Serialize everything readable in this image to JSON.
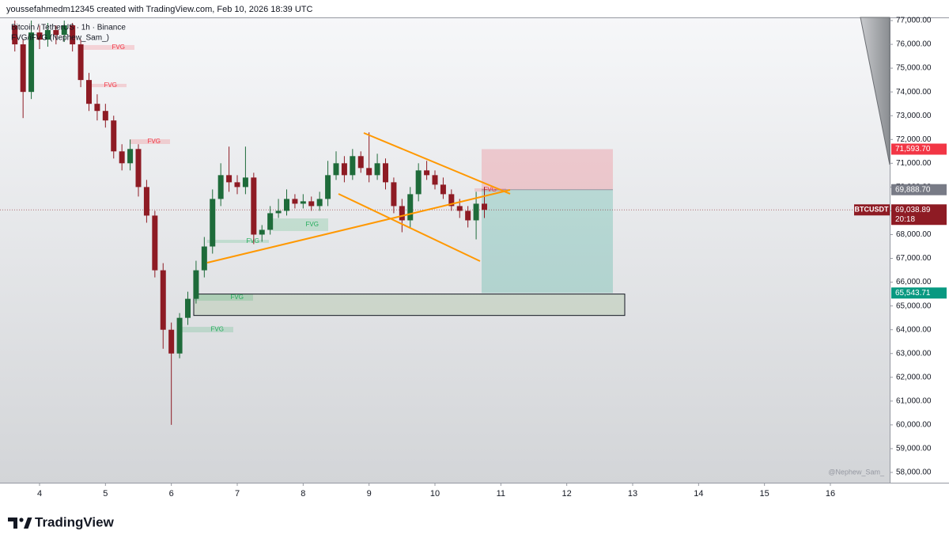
{
  "header": {
    "text": "youssefahmedm12345 created with TradingView.com, Feb 10, 2026 18:39 UTC"
  },
  "chart_data": {
    "type": "candlestick",
    "title": "Bitcoin / TetherUS · 1h · Binance",
    "indicator": "FVG/iFVG (Nephew_Sam_)",
    "watermark": "@Nephew_Sam_",
    "up_color": "#1e6b3a",
    "down_color": "#8e1b24",
    "x": [
      3.625,
      3.75,
      3.875,
      4,
      4.125,
      4.25,
      4.375,
      4.5,
      4.625,
      4.75,
      4.875,
      5,
      5.125,
      5.25,
      5.375,
      5.5,
      5.625,
      5.75,
      5.875,
      6,
      6.125,
      6.25,
      6.375,
      6.5,
      6.625,
      6.75,
      6.875,
      7,
      7.125,
      7.25,
      7.375,
      7.5,
      7.625,
      7.75,
      7.875,
      8,
      8.125,
      8.25,
      8.375,
      8.5,
      8.625,
      8.75,
      8.875,
      9,
      9.125,
      9.25,
      9.375,
      9.5,
      9.625,
      9.75,
      9.875,
      10,
      10.125,
      10.25,
      10.375,
      10.5,
      10.625,
      10.75
    ],
    "open": [
      76800,
      76000,
      74000,
      76500,
      76200,
      76600,
      76400,
      76800,
      76000,
      74500,
      73500,
      73200,
      72800,
      71500,
      71000,
      71600,
      70000,
      68800,
      66500,
      64000,
      63000,
      64500,
      65300,
      66500,
      67500,
      69500,
      70500,
      70200,
      70000,
      70400,
      68000,
      68200,
      68900,
      69000,
      69500,
      69300,
      69400,
      69200,
      69500,
      70500,
      71000,
      70500,
      71300,
      70800,
      70500,
      71000,
      70200,
      69200,
      68600,
      69700,
      70700,
      70500,
      70100,
      69700,
      69200,
      69000,
      68600,
      69300
    ],
    "high": [
      77000,
      76200,
      77000,
      76800,
      76900,
      76800,
      77000,
      76900,
      76200,
      74800,
      73900,
      73500,
      73000,
      71800,
      72000,
      71800,
      70300,
      69000,
      66800,
      64300,
      64700,
      65600,
      66900,
      67900,
      69900,
      71000,
      71700,
      70500,
      71700,
      70600,
      68400,
      69200,
      69500,
      69900,
      69700,
      69700,
      69600,
      69800,
      71100,
      71500,
      71300,
      71600,
      71500,
      72300,
      71400,
      71200,
      70400,
      69500,
      70000,
      71000,
      71100,
      70700,
      70400,
      69900,
      69500,
      69200,
      69800,
      70000
    ],
    "low": [
      75700,
      72900,
      73700,
      75800,
      75900,
      76000,
      76100,
      75700,
      74200,
      73200,
      72800,
      72500,
      71200,
      70700,
      70700,
      69600,
      68500,
      66200,
      63200,
      60000,
      62800,
      64200,
      65100,
      66200,
      67200,
      69200,
      69800,
      69700,
      69700,
      67600,
      67700,
      68000,
      68700,
      68800,
      69100,
      69100,
      69000,
      69000,
      69200,
      70300,
      70200,
      70300,
      70600,
      70200,
      70300,
      69900,
      68900,
      68100,
      68300,
      69400,
      70300,
      69900,
      69500,
      69000,
      68700,
      68300,
      67800,
      68700
    ],
    "close": [
      76000,
      74000,
      76500,
      76200,
      76600,
      76400,
      76800,
      76000,
      74500,
      73500,
      73200,
      72800,
      71500,
      71000,
      71600,
      70000,
      68800,
      66500,
      64000,
      63000,
      64500,
      65300,
      66500,
      67500,
      69500,
      70500,
      70200,
      70000,
      70400,
      68000,
      68200,
      68900,
      69000,
      69500,
      69300,
      69400,
      69200,
      69500,
      70500,
      71000,
      70500,
      71300,
      70800,
      70500,
      71000,
      70200,
      69200,
      68600,
      69700,
      70700,
      70500,
      70100,
      69700,
      69200,
      69000,
      68600,
      69300,
      69038.89
    ],
    "xlim": [
      3.4,
      16.9
    ],
    "ylim": [
      57568,
      77133
    ],
    "xticks": [
      4,
      5,
      6,
      7,
      8,
      9,
      10,
      11,
      12,
      13,
      14,
      15,
      16
    ],
    "yticks": [
      {
        "value": 58000,
        "label": "58,000.00"
      },
      {
        "value": 59000,
        "label": "59,000.00"
      },
      {
        "value": 60000,
        "label": "60,000.00"
      },
      {
        "value": 61000,
        "label": "61,000.00"
      },
      {
        "value": 62000,
        "label": "62,000.00"
      },
      {
        "value": 63000,
        "label": "63,000.00"
      },
      {
        "value": 64000,
        "label": "64,000.00"
      },
      {
        "value": 65000,
        "label": "65,000.00"
      },
      {
        "value": 66000,
        "label": "66,000.00"
      },
      {
        "value": 67000,
        "label": "67,000.00"
      },
      {
        "value": 68000,
        "label": "68,000.00"
      },
      {
        "value": 69000,
        "label": "69,000.00"
      },
      {
        "value": 70000,
        "label": "70,000.00"
      },
      {
        "value": 71000,
        "label": "71,000.00"
      },
      {
        "value": 72000,
        "label": "72,000.00"
      },
      {
        "value": 73000,
        "label": "73,000.00"
      },
      {
        "value": 74000,
        "label": "74,000.00"
      },
      {
        "value": 75000,
        "label": "75,000.00"
      },
      {
        "value": 76000,
        "label": "76,000.00"
      },
      {
        "value": 77000,
        "label": "77,000.00"
      }
    ],
    "price_labels": [
      {
        "value": 71593.7,
        "label": "71,593.70",
        "color": "#f23645"
      },
      {
        "value": 69888.7,
        "label": "69,888.70",
        "color": "#787b86"
      },
      {
        "value": 69038.89,
        "label": "69,038.89",
        "color": "#8e1b24"
      },
      {
        "value": 65543.71,
        "label": "65,543.71",
        "color": "#089981"
      }
    ],
    "symbol_label": "BTCUSDT",
    "countdown": "20:18",
    "fvg_zones": [
      {
        "start": 4.6,
        "end": 5.44,
        "top": 75970,
        "bottom": 75770,
        "label": "FVG",
        "color": "#f23645"
      },
      {
        "start": 4.72,
        "end": 5.32,
        "top": 74340,
        "bottom": 74200,
        "label": "FVG",
        "color": "#f23645"
      },
      {
        "start": 5.38,
        "end": 5.98,
        "top": 72010,
        "bottom": 71810,
        "label": "FVG",
        "color": "#f23645"
      },
      {
        "start": 10.6,
        "end": 11.08,
        "top": 69945,
        "bottom": 69810,
        "label": "FVG",
        "color": "#f23645"
      },
      {
        "start": 7.54,
        "end": 8.38,
        "top": 68680,
        "bottom": 68150,
        "label": "FVG",
        "color": "#22ab5a"
      },
      {
        "start": 6.54,
        "end": 7.48,
        "top": 67780,
        "bottom": 67650,
        "label": "FVG",
        "color": "#22ab5a"
      },
      {
        "start": 6.34,
        "end": 7.24,
        "top": 65490,
        "bottom": 65220,
        "label": "FVG",
        "color": "#22ab5a"
      },
      {
        "start": 6.16,
        "end": 6.94,
        "top": 64120,
        "bottom": 63890,
        "label": "FVG",
        "color": "#22ab5a"
      }
    ],
    "trend_lines": [
      {
        "x": [
          8.92,
          11.14
        ],
        "y": [
          72275,
          69714
        ],
        "color": "#ff9800"
      },
      {
        "x": [
          8.536,
          10.684
        ],
        "y": [
          69713,
          66885
        ],
        "color": "#ff9800"
      },
      {
        "x": [
          6.544,
          11.14
        ],
        "y": [
          66818,
          69879
        ],
        "color": "#ff9800"
      }
    ],
    "position": {
      "start": 10.708,
      "end": 12.7,
      "entry": 69888.7,
      "stop": 71593.7,
      "target": 65543.71
    },
    "zone_box": {
      "start": 6.34,
      "end": 12.88,
      "top": 65500,
      "bottom": 64600
    }
  },
  "footer": {
    "logo_text": "TradingView"
  }
}
